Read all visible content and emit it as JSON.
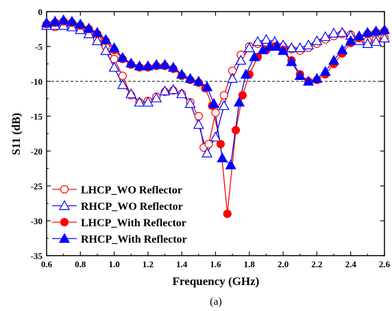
{
  "chart_data": {
    "type": "line",
    "caption": "(a)",
    "xlabel": "Frequency (GHz)",
    "ylabel": "S11 (dB)",
    "xlim": [
      0.6,
      2.6
    ],
    "ylim": [
      -35,
      0
    ],
    "xticks": [
      0.6,
      0.8,
      1.0,
      1.2,
      1.4,
      1.6,
      1.8,
      2.0,
      2.2,
      2.4,
      2.6
    ],
    "xtick_labels": [
      "0.6",
      "0.8",
      "1.0",
      "1.2",
      "1.4",
      "1.6",
      "1.8",
      "2.0",
      "2.2",
      "2.4",
      "2.6"
    ],
    "yticks": [
      0,
      -5,
      -10,
      -15,
      -20,
      -25,
      -30,
      -35
    ],
    "ytick_labels": [
      "0",
      "-5",
      "-10",
      "-15",
      "-20",
      "-25",
      "-30",
      "-35"
    ],
    "reference_line": {
      "y": -10,
      "style": "dashed"
    },
    "grid": false,
    "legend_position": "bottom-left",
    "series": [
      {
        "name": "LHCP_WO Reflector",
        "color": "#ff0000",
        "marker": "circle-open",
        "x": [
          0.6,
          0.65,
          0.7,
          0.75,
          0.8,
          0.85,
          0.9,
          0.95,
          1.0,
          1.05,
          1.1,
          1.15,
          1.2,
          1.25,
          1.3,
          1.35,
          1.4,
          1.45,
          1.5,
          1.53,
          1.56,
          1.6,
          1.65,
          1.7,
          1.75,
          1.8,
          1.85,
          1.9,
          1.95,
          2.0,
          2.05,
          2.1,
          2.15,
          2.2,
          2.25,
          2.3,
          2.35,
          2.4,
          2.45,
          2.5,
          2.55,
          2.6
        ],
        "y": [
          -2.0,
          -2.2,
          -1.8,
          -2.0,
          -2.5,
          -3.0,
          -4.0,
          -5.0,
          -6.8,
          -9.2,
          -12.0,
          -13.0,
          -12.8,
          -12.2,
          -11.5,
          -11.3,
          -11.8,
          -13.0,
          -15.0,
          -19.5,
          -19.0,
          -14.5,
          -12.0,
          -8.5,
          -6.2,
          -5.0,
          -4.6,
          -4.4,
          -4.6,
          -5.0,
          -5.4,
          -5.6,
          -5.2,
          -4.6,
          -4.0,
          -3.5,
          -3.2,
          -3.3,
          -3.8,
          -4.2,
          -4.0,
          -3.7
        ]
      },
      {
        "name": "RHCP_WO Reflector",
        "color": "#0000ff",
        "marker": "triangle-open",
        "x": [
          0.6,
          0.65,
          0.7,
          0.75,
          0.8,
          0.85,
          0.9,
          0.95,
          1.0,
          1.05,
          1.1,
          1.15,
          1.2,
          1.25,
          1.3,
          1.35,
          1.4,
          1.45,
          1.5,
          1.55,
          1.6,
          1.65,
          1.7,
          1.75,
          1.8,
          1.85,
          1.9,
          1.95,
          2.0,
          2.05,
          2.1,
          2.15,
          2.2,
          2.25,
          2.3,
          2.35,
          2.4,
          2.45,
          2.5,
          2.55,
          2.6
        ],
        "y": [
          -2.0,
          -2.0,
          -2.0,
          -2.2,
          -2.6,
          -3.2,
          -4.2,
          -5.6,
          -8.0,
          -10.5,
          -11.8,
          -13.0,
          -13.0,
          -12.4,
          -11.4,
          -11.2,
          -11.8,
          -13.2,
          -16.2,
          -20.3,
          -18.0,
          -13.5,
          -9.6,
          -7.0,
          -5.2,
          -4.3,
          -4.0,
          -4.3,
          -4.8,
          -5.2,
          -5.2,
          -4.8,
          -4.2,
          -3.6,
          -3.1,
          -3.0,
          -3.4,
          -4.2,
          -4.6,
          -4.3,
          -3.8
        ]
      },
      {
        "name": "LHCP_With Reflector",
        "color": "#ff0000",
        "marker": "circle-filled",
        "x": [
          0.6,
          0.65,
          0.7,
          0.75,
          0.8,
          0.85,
          0.9,
          0.95,
          1.0,
          1.05,
          1.1,
          1.15,
          1.2,
          1.25,
          1.3,
          1.35,
          1.4,
          1.45,
          1.5,
          1.54,
          1.58,
          1.63,
          1.67,
          1.72,
          1.76,
          1.8,
          1.85,
          1.9,
          1.95,
          2.0,
          2.05,
          2.1,
          2.15,
          2.2,
          2.25,
          2.3,
          2.35,
          2.4,
          2.45,
          2.5,
          2.55,
          2.6
        ],
        "y": [
          -1.8,
          -1.6,
          -1.4,
          -1.6,
          -2.0,
          -2.5,
          -3.2,
          -4.2,
          -5.5,
          -6.8,
          -7.6,
          -8.0,
          -8.0,
          -7.8,
          -7.8,
          -8.2,
          -9.2,
          -9.8,
          -10.2,
          -11.0,
          -13.5,
          -19.0,
          -29.0,
          -17.0,
          -12.0,
          -9.0,
          -6.5,
          -5.5,
          -5.0,
          -5.5,
          -7.0,
          -9.0,
          -10.0,
          -9.8,
          -9.0,
          -7.5,
          -6.0,
          -4.5,
          -3.8,
          -3.2,
          -3.0,
          -2.8
        ]
      },
      {
        "name": "RHCP_With Reflector",
        "color": "#0000ff",
        "marker": "triangle-filled",
        "x": [
          0.6,
          0.65,
          0.7,
          0.75,
          0.8,
          0.85,
          0.9,
          0.95,
          1.0,
          1.05,
          1.1,
          1.15,
          1.2,
          1.25,
          1.3,
          1.35,
          1.4,
          1.45,
          1.5,
          1.55,
          1.59,
          1.64,
          1.69,
          1.74,
          1.78,
          1.83,
          1.88,
          1.92,
          1.96,
          2.0,
          2.05,
          2.1,
          2.15,
          2.2,
          2.25,
          2.3,
          2.35,
          2.4,
          2.45,
          2.5,
          2.55,
          2.6
        ],
        "y": [
          -1.6,
          -1.4,
          -1.2,
          -1.4,
          -1.8,
          -2.4,
          -3.0,
          -4.0,
          -5.2,
          -6.6,
          -7.4,
          -7.8,
          -7.8,
          -7.6,
          -7.6,
          -8.0,
          -9.0,
          -9.6,
          -10.0,
          -10.8,
          -13.2,
          -21.0,
          -22.0,
          -13.0,
          -9.0,
          -6.5,
          -5.5,
          -5.0,
          -5.0,
          -5.6,
          -7.2,
          -9.2,
          -10.0,
          -9.6,
          -8.6,
          -7.0,
          -5.5,
          -4.2,
          -3.5,
          -3.0,
          -2.8,
          -2.6
        ]
      }
    ]
  }
}
